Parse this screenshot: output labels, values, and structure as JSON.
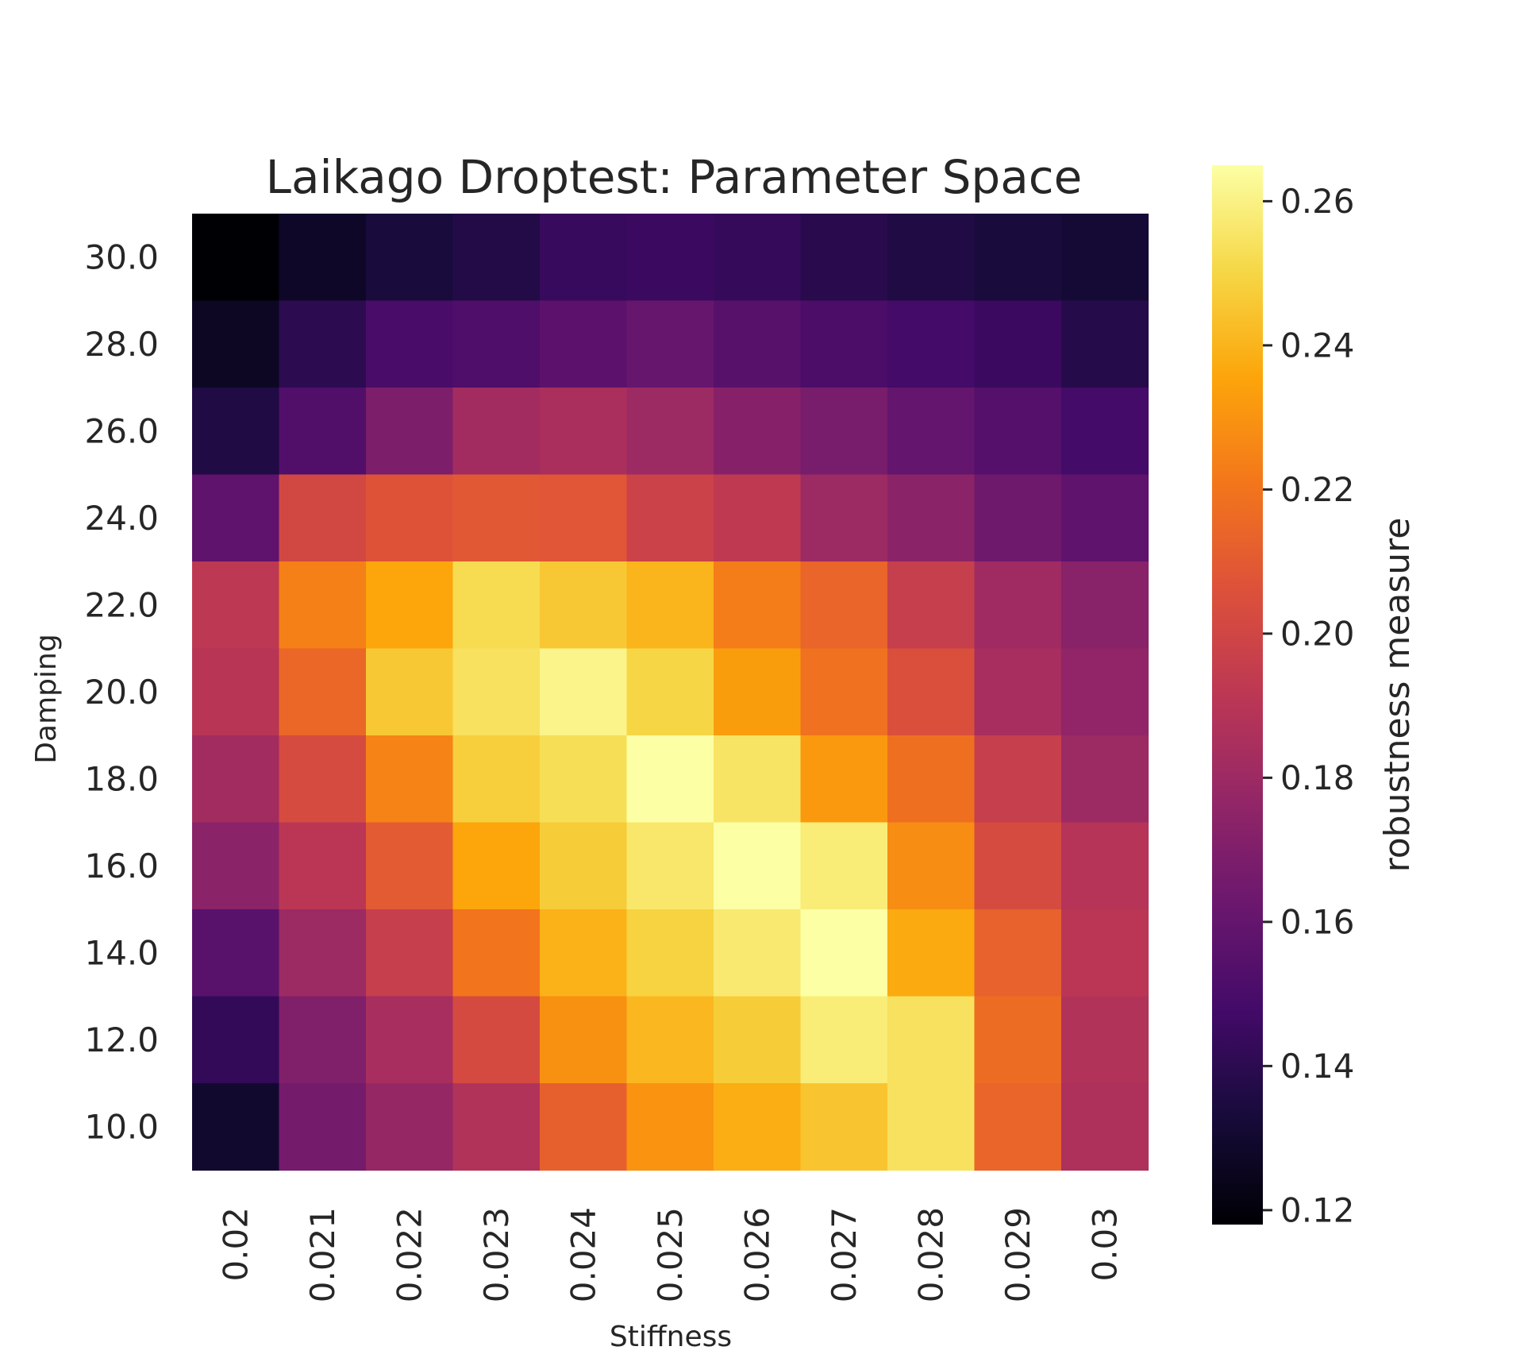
{
  "chart_data": {
    "type": "heatmap",
    "title": "Laikago Droptest: Parameter Space",
    "xlabel": "Stiffness",
    "ylabel": "Damping",
    "colorbar_label": "robustness measure",
    "colormap": "inferno",
    "x_categories": [
      "0.02",
      "0.021",
      "0.022",
      "0.023",
      "0.024",
      "0.025",
      "0.026",
      "0.027",
      "0.028",
      "0.029",
      "0.03"
    ],
    "y_categories": [
      "30.0",
      "28.0",
      "26.0",
      "24.0",
      "22.0",
      "20.0",
      "18.0",
      "16.0",
      "14.0",
      "12.0",
      "10.0"
    ],
    "values": [
      [
        0.118,
        0.128,
        0.134,
        0.137,
        0.144,
        0.145,
        0.143,
        0.139,
        0.136,
        0.134,
        0.132
      ],
      [
        0.127,
        0.14,
        0.15,
        0.152,
        0.157,
        0.161,
        0.155,
        0.151,
        0.148,
        0.145,
        0.138
      ],
      [
        0.136,
        0.153,
        0.169,
        0.182,
        0.185,
        0.18,
        0.172,
        0.167,
        0.16,
        0.154,
        0.148
      ],
      [
        0.158,
        0.201,
        0.207,
        0.209,
        0.208,
        0.198,
        0.193,
        0.18,
        0.174,
        0.164,
        0.158
      ],
      [
        0.192,
        0.224,
        0.236,
        0.252,
        0.246,
        0.24,
        0.223,
        0.214,
        0.196,
        0.181,
        0.173
      ],
      [
        0.19,
        0.215,
        0.246,
        0.254,
        0.261,
        0.25,
        0.233,
        0.219,
        0.205,
        0.184,
        0.176
      ],
      [
        0.182,
        0.203,
        0.225,
        0.248,
        0.253,
        0.265,
        0.255,
        0.232,
        0.218,
        0.196,
        0.18
      ],
      [
        0.174,
        0.191,
        0.21,
        0.236,
        0.247,
        0.256,
        0.265,
        0.258,
        0.228,
        0.203,
        0.189
      ],
      [
        0.156,
        0.18,
        0.196,
        0.22,
        0.239,
        0.249,
        0.257,
        0.265,
        0.237,
        0.213,
        0.191
      ],
      [
        0.142,
        0.17,
        0.184,
        0.202,
        0.229,
        0.241,
        0.247,
        0.258,
        0.254,
        0.217,
        0.188
      ],
      [
        0.13,
        0.166,
        0.178,
        0.188,
        0.212,
        0.23,
        0.238,
        0.245,
        0.254,
        0.214,
        0.186
      ]
    ],
    "vmin": 0.118,
    "vmax": 0.265,
    "colorbar_ticks": [
      "0.12",
      "0.14",
      "0.16",
      "0.18",
      "0.20",
      "0.22",
      "0.24",
      "0.26"
    ]
  }
}
